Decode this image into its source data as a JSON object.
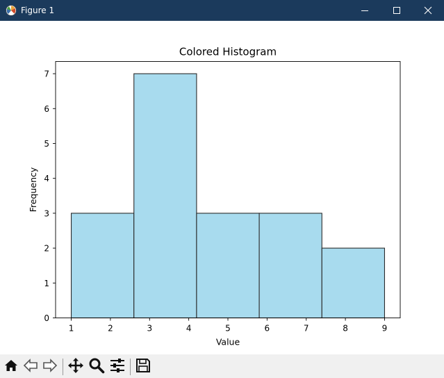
{
  "window": {
    "title": "Figure 1",
    "titlebar_color": "#1b3a5c",
    "icons": [
      "matplotlib-logo-icon",
      "minimize-icon",
      "maximize-icon",
      "close-icon"
    ]
  },
  "chart_data": {
    "type": "bar",
    "title": "Colored Histogram",
    "xlabel": "Value",
    "ylabel": "Frequency",
    "bins": [
      {
        "x0": 1.0,
        "x1": 2.6,
        "count": 3
      },
      {
        "x0": 2.6,
        "x1": 4.2,
        "count": 7
      },
      {
        "x0": 4.2,
        "x1": 5.8,
        "count": 3
      },
      {
        "x0": 5.8,
        "x1": 7.4,
        "count": 3
      },
      {
        "x0": 7.4,
        "x1": 9.0,
        "count": 2
      }
    ],
    "xlim": [
      0.6,
      9.4
    ],
    "ylim": [
      0,
      7.35
    ],
    "xticks": [
      1,
      2,
      3,
      4,
      5,
      6,
      7,
      8,
      9
    ],
    "yticks": [
      0,
      1,
      2,
      3,
      4,
      5,
      6,
      7
    ],
    "bar_color": "#a8dbee",
    "edge_color": "#2b2b2b",
    "grid": false,
    "legend": "none"
  },
  "toolbar": {
    "icons": [
      "home-icon",
      "back-icon",
      "forward-icon",
      "pan-icon",
      "zoom-icon",
      "configure-subplots-icon",
      "save-icon"
    ]
  }
}
